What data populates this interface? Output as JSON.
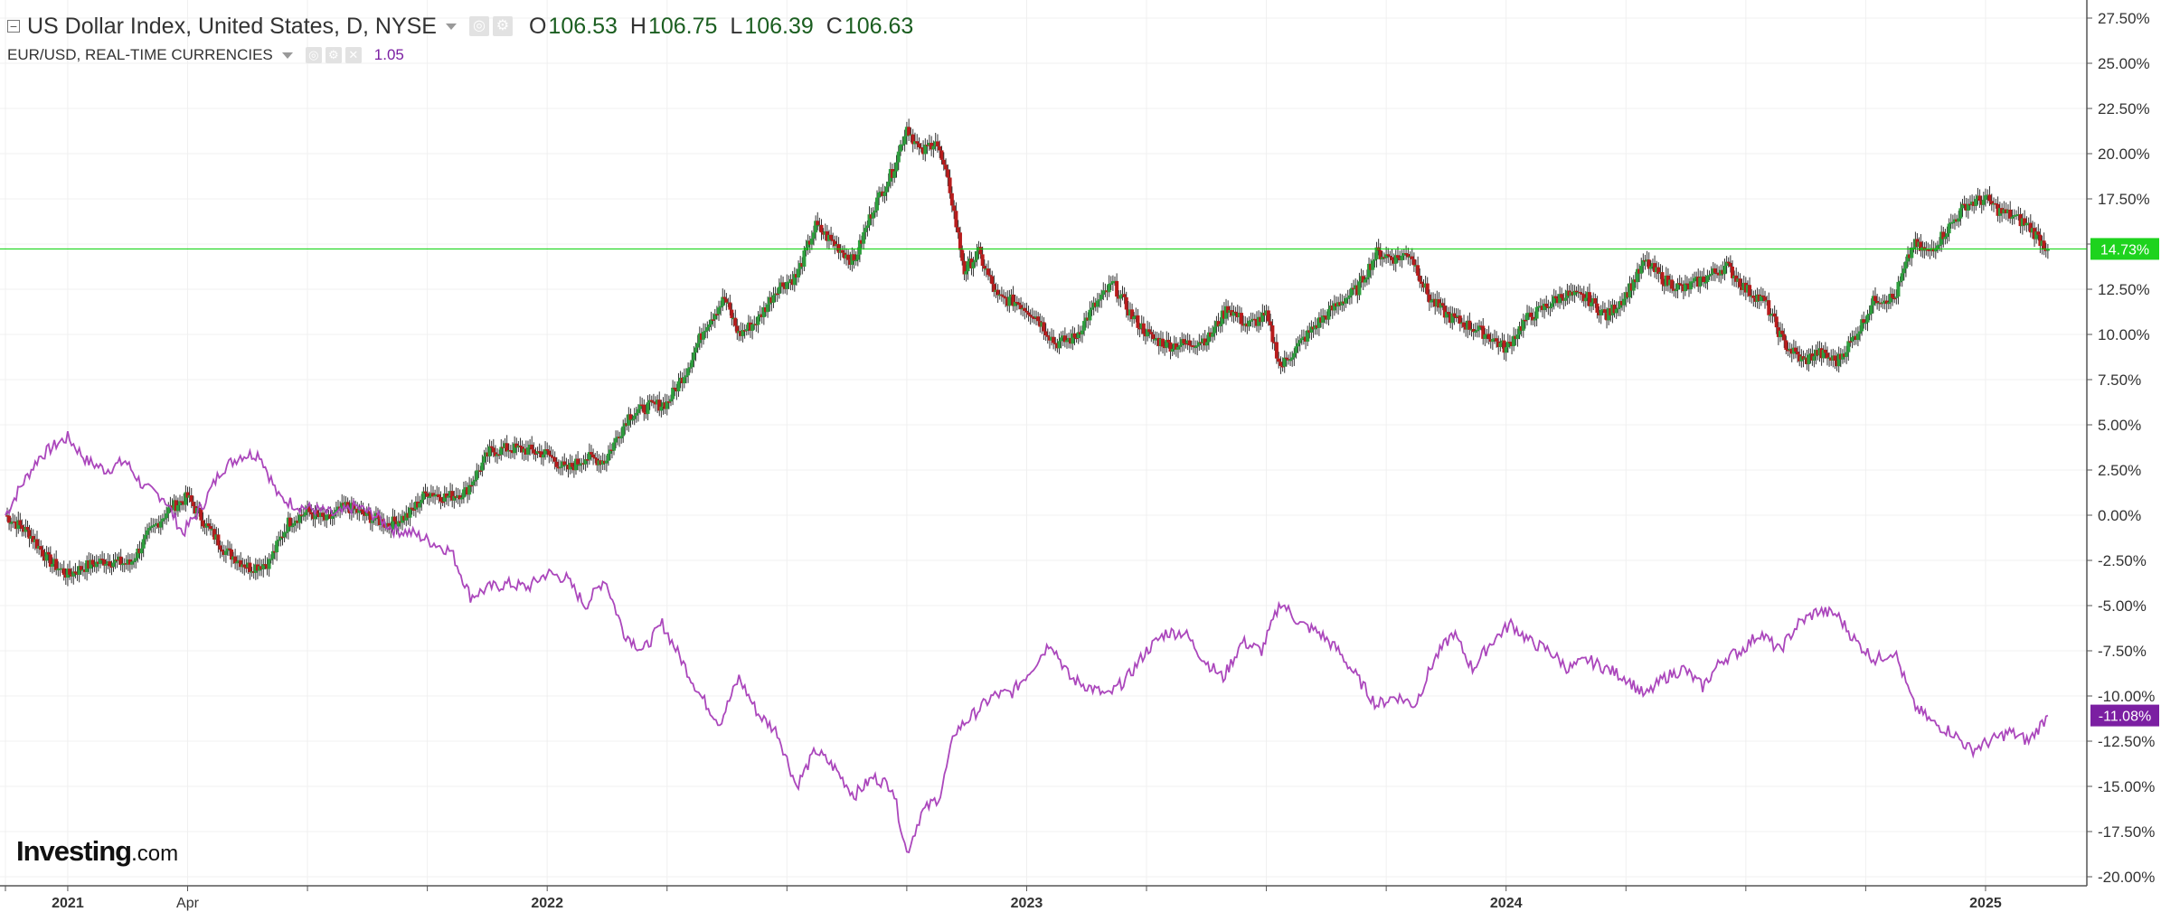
{
  "legend": {
    "main": {
      "title": "US Dollar Index, United States, D, NYSE",
      "o_label": "O",
      "o_value": "106.53",
      "h_label": "H",
      "h_value": "106.75",
      "l_label": "L",
      "l_value": "106.39",
      "c_label": "C",
      "c_value": "106.63"
    },
    "compare": {
      "title": "EUR/USD, REAL-TIME CURRENCIES",
      "value": "1.05"
    }
  },
  "logo": {
    "bold": "Investing",
    "suffix": ".com"
  },
  "colors": {
    "up": "#2e9e3e",
    "down": "#b71c1c",
    "wick": "#333333",
    "compare_line": "#ab47bc",
    "last_line": "#00d000",
    "last_badge_main": "#1ed31e",
    "last_badge_compare": "#7b1fa2",
    "grid": "#f0f0f0",
    "axis_text": "#333333"
  },
  "chart_data": {
    "type": "line",
    "y_axis": {
      "unit": "%",
      "range": [
        -20.5,
        28.5
      ],
      "ticks": [
        "27.50%",
        "25.00%",
        "22.50%",
        "20.00%",
        "17.50%",
        "15.00%",
        "12.50%",
        "10.00%",
        "7.50%",
        "5.00%",
        "2.50%",
        "0.00%",
        "-2.50%",
        "-5.00%",
        "-7.50%",
        "-10.00%",
        "-12.50%",
        "-15.00%",
        "-17.50%",
        "-20.00%"
      ],
      "tick_values": [
        27.5,
        25,
        22.5,
        20,
        17.5,
        15,
        12.5,
        10,
        7.5,
        5,
        2.5,
        0,
        -2.5,
        -5,
        -7.5,
        -10,
        -12.5,
        -15,
        -17.5,
        -20
      ]
    },
    "x_axis": {
      "range": [
        2020.87,
        2025.2
      ],
      "tick_labels": [
        {
          "label": "2021",
          "x": 2021.0,
          "bold": true
        },
        {
          "label": "Apr",
          "x": 2021.25,
          "bold": false
        },
        {
          "label": "2022",
          "x": 2022.0,
          "bold": true
        },
        {
          "label": "2023",
          "x": 2023.0,
          "bold": true
        },
        {
          "label": "2024",
          "x": 2024.0,
          "bold": true
        },
        {
          "label": "2025",
          "x": 2025.0,
          "bold": true
        }
      ],
      "minor_ticks": [
        2020.87,
        2021.5,
        2021.75,
        2022.25,
        2022.5,
        2022.75,
        2023.25,
        2023.5,
        2023.75,
        2024.25,
        2024.5,
        2024.75
      ]
    },
    "series": [
      {
        "name": "US Dollar Index, United States, D, NYSE",
        "style": "candlestick",
        "last_label": "14.73%",
        "last_value": 14.73,
        "points": [
          [
            2020.87,
            0.0
          ],
          [
            2020.92,
            -1.0
          ],
          [
            2020.96,
            -2.5
          ],
          [
            2021.0,
            -3.3
          ],
          [
            2021.04,
            -2.8
          ],
          [
            2021.08,
            -2.5
          ],
          [
            2021.13,
            -2.7
          ],
          [
            2021.17,
            -1.0
          ],
          [
            2021.21,
            0.3
          ],
          [
            2021.25,
            1.0
          ],
          [
            2021.29,
            -0.6
          ],
          [
            2021.33,
            -2.0
          ],
          [
            2021.38,
            -2.9
          ],
          [
            2021.42,
            -2.6
          ],
          [
            2021.46,
            -0.4
          ],
          [
            2021.5,
            0.2
          ],
          [
            2021.54,
            -0.3
          ],
          [
            2021.58,
            0.5
          ],
          [
            2021.62,
            0.0
          ],
          [
            2021.67,
            -0.5
          ],
          [
            2021.71,
            0.0
          ],
          [
            2021.75,
            1.3
          ],
          [
            2021.79,
            1.0
          ],
          [
            2021.83,
            1.3
          ],
          [
            2021.88,
            3.5
          ],
          [
            2021.92,
            3.7
          ],
          [
            2021.96,
            3.6
          ],
          [
            2022.0,
            3.4
          ],
          [
            2022.04,
            2.5
          ],
          [
            2022.08,
            3.2
          ],
          [
            2022.12,
            3.0
          ],
          [
            2022.17,
            5.5
          ],
          [
            2022.21,
            6.0
          ],
          [
            2022.25,
            6.2
          ],
          [
            2022.29,
            8.0
          ],
          [
            2022.33,
            10.5
          ],
          [
            2022.37,
            12.0
          ],
          [
            2022.4,
            10.0
          ],
          [
            2022.44,
            10.8
          ],
          [
            2022.48,
            12.6
          ],
          [
            2022.52,
            13.2
          ],
          [
            2022.56,
            16.0
          ],
          [
            2022.6,
            15.0
          ],
          [
            2022.64,
            14.0
          ],
          [
            2022.68,
            17.0
          ],
          [
            2022.72,
            19.0
          ],
          [
            2022.75,
            21.5
          ],
          [
            2022.78,
            20.0
          ],
          [
            2022.81,
            20.8
          ],
          [
            2022.84,
            18.0
          ],
          [
            2022.87,
            13.5
          ],
          [
            2022.9,
            14.5
          ],
          [
            2022.94,
            12.0
          ],
          [
            2022.98,
            11.8
          ],
          [
            2023.02,
            11.0
          ],
          [
            2023.06,
            9.5
          ],
          [
            2023.1,
            9.8
          ],
          [
            2023.14,
            11.5
          ],
          [
            2023.18,
            12.8
          ],
          [
            2023.22,
            11.0
          ],
          [
            2023.26,
            9.8
          ],
          [
            2023.3,
            9.4
          ],
          [
            2023.34,
            9.5
          ],
          [
            2023.38,
            9.8
          ],
          [
            2023.42,
            11.5
          ],
          [
            2023.46,
            10.5
          ],
          [
            2023.5,
            11.0
          ],
          [
            2023.53,
            8.2
          ],
          [
            2023.57,
            9.5
          ],
          [
            2023.61,
            10.7
          ],
          [
            2023.65,
            11.7
          ],
          [
            2023.69,
            12.5
          ],
          [
            2023.73,
            14.5
          ],
          [
            2023.77,
            14.2
          ],
          [
            2023.8,
            14.5
          ],
          [
            2023.84,
            12.0
          ],
          [
            2023.88,
            11.0
          ],
          [
            2023.92,
            10.5
          ],
          [
            2023.96,
            10.0
          ],
          [
            2024.0,
            9.2
          ],
          [
            2024.04,
            10.8
          ],
          [
            2024.08,
            11.5
          ],
          [
            2024.12,
            12.2
          ],
          [
            2024.17,
            12.0
          ],
          [
            2024.21,
            11.0
          ],
          [
            2024.25,
            12.2
          ],
          [
            2024.29,
            14.0
          ],
          [
            2024.33,
            13.0
          ],
          [
            2024.37,
            12.5
          ],
          [
            2024.42,
            13.2
          ],
          [
            2024.46,
            13.8
          ],
          [
            2024.5,
            12.5
          ],
          [
            2024.54,
            11.8
          ],
          [
            2024.58,
            9.5
          ],
          [
            2024.62,
            8.5
          ],
          [
            2024.65,
            9.0
          ],
          [
            2024.69,
            8.5
          ],
          [
            2024.73,
            10.0
          ],
          [
            2024.77,
            12.0
          ],
          [
            2024.81,
            12.0
          ],
          [
            2024.85,
            15.0
          ],
          [
            2024.88,
            14.5
          ],
          [
            2024.92,
            15.8
          ],
          [
            2024.96,
            17.2
          ],
          [
            2025.0,
            17.5
          ],
          [
            2025.03,
            16.8
          ],
          [
            2025.06,
            16.5
          ],
          [
            2025.09,
            16.0
          ],
          [
            2025.13,
            14.7
          ]
        ]
      },
      {
        "name": "EUR/USD, REAL-TIME CURRENCIES",
        "style": "line",
        "last_label": "-11.08%",
        "last_value": -11.08,
        "points": [
          [
            2020.87,
            0.0
          ],
          [
            2020.9,
            1.5
          ],
          [
            2020.94,
            3.2
          ],
          [
            2020.98,
            4.0
          ],
          [
            2021.0,
            4.3
          ],
          [
            2021.04,
            3.0
          ],
          [
            2021.08,
            2.5
          ],
          [
            2021.12,
            3.0
          ],
          [
            2021.16,
            1.5
          ],
          [
            2021.2,
            1.0
          ],
          [
            2021.24,
            -1.0
          ],
          [
            2021.28,
            0.5
          ],
          [
            2021.32,
            2.5
          ],
          [
            2021.36,
            3.3
          ],
          [
            2021.4,
            3.4
          ],
          [
            2021.44,
            1.0
          ],
          [
            2021.48,
            0.5
          ],
          [
            2021.52,
            0.3
          ],
          [
            2021.56,
            0.0
          ],
          [
            2021.6,
            0.5
          ],
          [
            2021.64,
            0.0
          ],
          [
            2021.68,
            -0.8
          ],
          [
            2021.72,
            -1.0
          ],
          [
            2021.76,
            -1.5
          ],
          [
            2021.8,
            -2.0
          ],
          [
            2021.84,
            -4.5
          ],
          [
            2021.88,
            -4.0
          ],
          [
            2021.92,
            -3.8
          ],
          [
            2021.96,
            -4.0
          ],
          [
            2022.0,
            -3.2
          ],
          [
            2022.04,
            -3.5
          ],
          [
            2022.08,
            -5.0
          ],
          [
            2022.12,
            -3.5
          ],
          [
            2022.16,
            -6.5
          ],
          [
            2022.2,
            -7.5
          ],
          [
            2022.24,
            -6.0
          ],
          [
            2022.28,
            -8.0
          ],
          [
            2022.32,
            -10.0
          ],
          [
            2022.36,
            -11.5
          ],
          [
            2022.4,
            -9.0
          ],
          [
            2022.44,
            -11.0
          ],
          [
            2022.48,
            -12.0
          ],
          [
            2022.52,
            -15.0
          ],
          [
            2022.56,
            -13.0
          ],
          [
            2022.6,
            -14.0
          ],
          [
            2022.64,
            -15.5
          ],
          [
            2022.68,
            -14.5
          ],
          [
            2022.72,
            -15.0
          ],
          [
            2022.75,
            -18.7
          ],
          [
            2022.78,
            -16.5
          ],
          [
            2022.82,
            -15.5
          ],
          [
            2022.85,
            -12.0
          ],
          [
            2022.89,
            -11.0
          ],
          [
            2022.93,
            -10.0
          ],
          [
            2022.97,
            -9.8
          ],
          [
            2023.01,
            -8.5
          ],
          [
            2023.05,
            -7.0
          ],
          [
            2023.09,
            -9.0
          ],
          [
            2023.13,
            -9.5
          ],
          [
            2023.17,
            -10.0
          ],
          [
            2023.21,
            -9.0
          ],
          [
            2023.25,
            -7.5
          ],
          [
            2023.29,
            -6.5
          ],
          [
            2023.33,
            -6.5
          ],
          [
            2023.37,
            -8.0
          ],
          [
            2023.41,
            -9.0
          ],
          [
            2023.45,
            -7.0
          ],
          [
            2023.49,
            -7.5
          ],
          [
            2023.53,
            -4.8
          ],
          [
            2023.57,
            -6.0
          ],
          [
            2023.61,
            -6.5
          ],
          [
            2023.65,
            -7.5
          ],
          [
            2023.69,
            -9.0
          ],
          [
            2023.73,
            -10.5
          ],
          [
            2023.77,
            -10.0
          ],
          [
            2023.81,
            -10.5
          ],
          [
            2023.85,
            -8.0
          ],
          [
            2023.89,
            -6.5
          ],
          [
            2023.93,
            -8.5
          ],
          [
            2023.97,
            -7.0
          ],
          [
            2024.01,
            -6.0
          ],
          [
            2024.05,
            -7.0
          ],
          [
            2024.09,
            -7.5
          ],
          [
            2024.13,
            -8.5
          ],
          [
            2024.17,
            -8.0
          ],
          [
            2024.21,
            -8.5
          ],
          [
            2024.25,
            -9.0
          ],
          [
            2024.29,
            -10.0
          ],
          [
            2024.33,
            -9.0
          ],
          [
            2024.37,
            -8.5
          ],
          [
            2024.41,
            -9.5
          ],
          [
            2024.45,
            -8.0
          ],
          [
            2024.49,
            -7.5
          ],
          [
            2024.53,
            -6.5
          ],
          [
            2024.57,
            -7.5
          ],
          [
            2024.61,
            -6.0
          ],
          [
            2024.65,
            -5.3
          ],
          [
            2024.69,
            -5.5
          ],
          [
            2024.73,
            -7.0
          ],
          [
            2024.77,
            -8.0
          ],
          [
            2024.81,
            -7.5
          ],
          [
            2024.85,
            -10.5
          ],
          [
            2024.89,
            -11.5
          ],
          [
            2024.93,
            -12.0
          ],
          [
            2024.97,
            -13.0
          ],
          [
            2025.01,
            -12.5
          ],
          [
            2025.05,
            -12.0
          ],
          [
            2025.09,
            -12.5
          ],
          [
            2025.13,
            -11.08
          ]
        ]
      }
    ],
    "grid": true,
    "legend_position": "top-left"
  }
}
